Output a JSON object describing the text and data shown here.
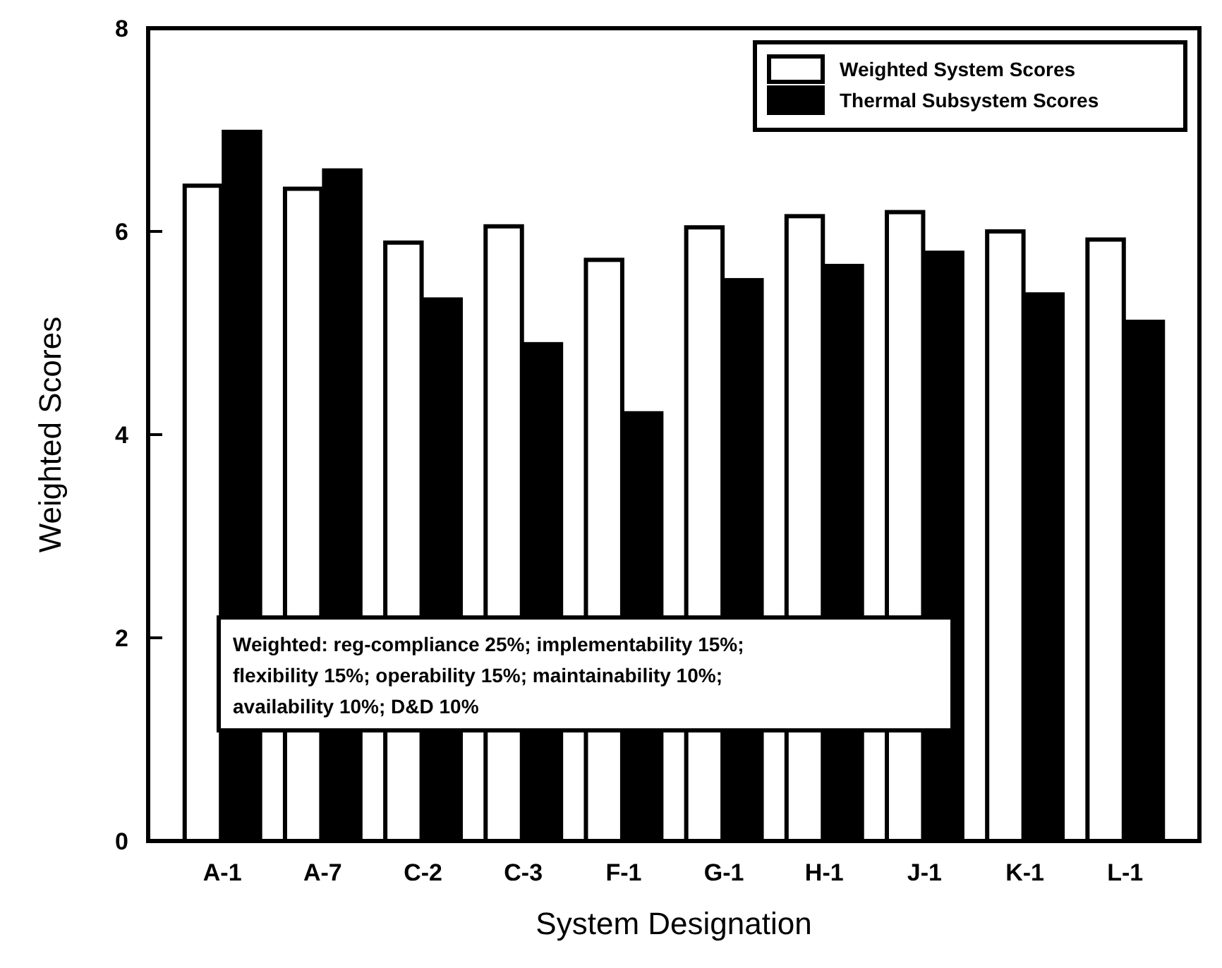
{
  "chart_data": {
    "type": "bar",
    "xlabel": "System Designation",
    "ylabel": "Weighted Scores",
    "categories": [
      "A-1",
      "A-7",
      "C-2",
      "C-3",
      "F-1",
      "G-1",
      "H-1",
      "J-1",
      "K-1",
      "L-1"
    ],
    "series": [
      {
        "name": "Weighted System Scores",
        "color": "#ffffff",
        "values": [
          6.45,
          6.42,
          5.89,
          6.05,
          5.72,
          6.04,
          6.15,
          6.19,
          6.0,
          5.92
        ]
      },
      {
        "name": "Thermal Subsystem Scores",
        "color": "#000000",
        "values": [
          6.98,
          6.6,
          5.33,
          4.89,
          4.21,
          5.52,
          5.66,
          5.79,
          5.38,
          5.11
        ]
      }
    ],
    "ylim": [
      0,
      8
    ],
    "yticks": [
      0,
      2,
      4,
      6,
      8
    ],
    "grid": false,
    "legend": "top right",
    "annotations": [
      "Weighted:  reg-compliance 25%; implementability 15%; flexibility 15%; operability 15%; maintainability 10%; availability 10%; D&D 10%"
    ]
  }
}
